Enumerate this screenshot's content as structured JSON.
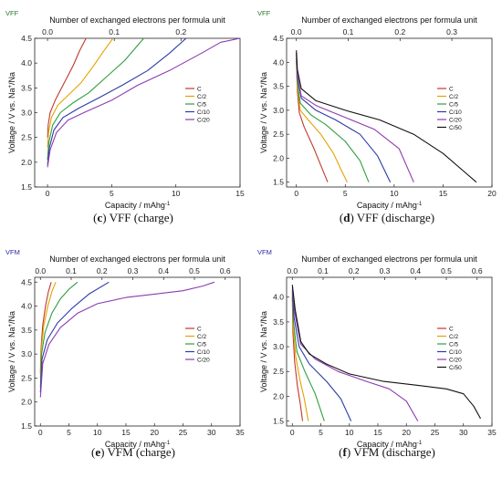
{
  "captions": [
    {
      "letter": "c",
      "text": "VFF (charge)"
    },
    {
      "letter": "d",
      "text": "VFF (discharge)"
    },
    {
      "letter": "e",
      "text": "VFM (charge)"
    },
    {
      "letter": "f",
      "text": "VFM (discharge)"
    }
  ],
  "tag_color": "#2a7a2a",
  "tag_color_vfm": "#2a2aa8",
  "chart_data": [
    {
      "type": "line",
      "tag": "VFF",
      "title": "",
      "xlabel": "Capacity / mAhg",
      "xlabel_sup": "-1",
      "ylabel": "Voltage / V vs. Na",
      "ylabel_sup": "+",
      "ylabel_suffix": "/Na",
      "top_label": "Number of exchanged electrons per formula unit",
      "xlim": [
        -1,
        15
      ],
      "ylim": [
        1.5,
        4.5
      ],
      "xticks": [
        "0",
        "5",
        "10",
        "15"
      ],
      "yticks": [
        "1.5",
        "2.0",
        "2.5",
        "3.0",
        "3.5",
        "4.0",
        "4.5"
      ],
      "top_ticks": [
        "0.0",
        "0.1",
        "0.2"
      ],
      "top_ticks_x": [
        0,
        5.2,
        10.4
      ],
      "legend": "right",
      "series": [
        {
          "name": "C",
          "color": "#c0392b",
          "points": [
            [
              0,
              2.5
            ],
            [
              0.05,
              2.75
            ],
            [
              0.2,
              3.0
            ],
            [
              0.6,
              3.25
            ],
            [
              1.2,
              3.55
            ],
            [
              2.0,
              3.95
            ],
            [
              2.5,
              4.25
            ],
            [
              3.0,
              4.5
            ]
          ]
        },
        {
          "name": "C/2",
          "color": "#e6a100",
          "points": [
            [
              0,
              2.3
            ],
            [
              0.08,
              2.6
            ],
            [
              0.3,
              2.9
            ],
            [
              0.8,
              3.15
            ],
            [
              1.6,
              3.35
            ],
            [
              2.6,
              3.6
            ],
            [
              3.6,
              3.95
            ],
            [
              4.4,
              4.25
            ],
            [
              5.1,
              4.5
            ]
          ]
        },
        {
          "name": "C/5",
          "color": "#2e9e3e",
          "points": [
            [
              0,
              2.05
            ],
            [
              0.1,
              2.4
            ],
            [
              0.4,
              2.75
            ],
            [
              1.0,
              3.0
            ],
            [
              2.0,
              3.2
            ],
            [
              3.2,
              3.4
            ],
            [
              4.5,
              3.7
            ],
            [
              6.0,
              4.05
            ],
            [
              7.5,
              4.5
            ]
          ]
        },
        {
          "name": "C/10",
          "color": "#2b3ba8",
          "points": [
            [
              0,
              1.95
            ],
            [
              0.15,
              2.3
            ],
            [
              0.5,
              2.65
            ],
            [
              1.2,
              2.9
            ],
            [
              2.5,
              3.1
            ],
            [
              4.0,
              3.3
            ],
            [
              5.8,
              3.55
            ],
            [
              7.8,
              3.85
            ],
            [
              9.5,
              4.2
            ],
            [
              10.8,
              4.5
            ]
          ]
        },
        {
          "name": "C/20",
          "color": "#8e3bb0",
          "points": [
            [
              0,
              1.9
            ],
            [
              0.2,
              2.25
            ],
            [
              0.7,
              2.6
            ],
            [
              1.6,
              2.85
            ],
            [
              3.0,
              3.02
            ],
            [
              5.0,
              3.25
            ],
            [
              7.0,
              3.55
            ],
            [
              9.5,
              3.85
            ],
            [
              12.0,
              4.2
            ],
            [
              13.5,
              4.42
            ],
            [
              15,
              4.5
            ]
          ]
        }
      ]
    },
    {
      "type": "line",
      "tag": "VFF",
      "title": "",
      "xlabel": "Capacity / mAhg",
      "xlabel_sup": "-1",
      "ylabel": "Voltage / V vs. Na",
      "ylabel_sup": "+",
      "ylabel_suffix": "/Na",
      "top_label": "Number of exchanged electrons per formula unit",
      "xlim": [
        -1,
        20
      ],
      "ylim": [
        1.4,
        4.5
      ],
      "xticks": [
        "0",
        "5",
        "10",
        "15",
        "20"
      ],
      "yticks": [
        "1.5",
        "2.0",
        "2.5",
        "3.0",
        "3.5",
        "4.0",
        "4.5"
      ],
      "top_ticks": [
        "0.0",
        "0.1",
        "0.2",
        "0.3"
      ],
      "top_ticks_x": [
        0,
        5.3,
        10.6,
        15.9
      ],
      "legend": "right",
      "series": [
        {
          "name": "C",
          "color": "#c0392b",
          "points": [
            [
              0,
              4.05
            ],
            [
              0.1,
              3.4
            ],
            [
              0.3,
              2.95
            ],
            [
              0.8,
              2.65
            ],
            [
              1.8,
              2.2
            ],
            [
              2.5,
              1.85
            ],
            [
              3.2,
              1.5
            ]
          ]
        },
        {
          "name": "C/2",
          "color": "#e6a100",
          "points": [
            [
              0,
              4.1
            ],
            [
              0.1,
              3.5
            ],
            [
              0.4,
              3.0
            ],
            [
              1.2,
              2.8
            ],
            [
              2.5,
              2.5
            ],
            [
              3.8,
              2.1
            ],
            [
              4.6,
              1.75
            ],
            [
              5.2,
              1.5
            ]
          ]
        },
        {
          "name": "C/5",
          "color": "#2e9e3e",
          "points": [
            [
              0,
              4.15
            ],
            [
              0.1,
              3.6
            ],
            [
              0.4,
              3.15
            ],
            [
              1.5,
              2.9
            ],
            [
              3.0,
              2.7
            ],
            [
              5.0,
              2.35
            ],
            [
              6.5,
              1.95
            ],
            [
              7.4,
              1.5
            ]
          ]
        },
        {
          "name": "C/10",
          "color": "#2b3ba8",
          "points": [
            [
              0,
              4.2
            ],
            [
              0.1,
              3.7
            ],
            [
              0.5,
              3.25
            ],
            [
              2.0,
              3.0
            ],
            [
              4.0,
              2.8
            ],
            [
              6.5,
              2.5
            ],
            [
              8.3,
              2.05
            ],
            [
              9.6,
              1.5
            ]
          ]
        },
        {
          "name": "C/20",
          "color": "#8e3bb0",
          "points": [
            [
              0,
              4.2
            ],
            [
              0.1,
              3.75
            ],
            [
              0.5,
              3.3
            ],
            [
              2.0,
              3.1
            ],
            [
              5.0,
              2.85
            ],
            [
              8.0,
              2.6
            ],
            [
              10.5,
              2.2
            ],
            [
              12.0,
              1.5
            ]
          ]
        },
        {
          "name": "C/50",
          "color": "#111111",
          "points": [
            [
              0,
              4.25
            ],
            [
              0.1,
              3.85
            ],
            [
              0.5,
              3.45
            ],
            [
              2.0,
              3.2
            ],
            [
              5.0,
              3.0
            ],
            [
              8.5,
              2.8
            ],
            [
              12.0,
              2.5
            ],
            [
              15.0,
              2.1
            ],
            [
              18.4,
              1.5
            ]
          ]
        }
      ]
    },
    {
      "type": "line",
      "tag": "VFM",
      "title": "",
      "xlabel": "Capacity / mAhg",
      "xlabel_sup": "-1",
      "ylabel": "Voltage / V vs. Na",
      "ylabel_sup": "+",
      "ylabel_suffix": "/Na",
      "top_label": "Number of exchanged electrons per formula unit",
      "xlim": [
        -1,
        35
      ],
      "ylim": [
        1.5,
        4.6
      ],
      "xticks": [
        "0",
        "5",
        "10",
        "15",
        "20",
        "25",
        "30",
        "35"
      ],
      "yticks": [
        "1.5",
        "2.0",
        "2.5",
        "3.0",
        "3.5",
        "4.0",
        "4.5"
      ],
      "top_ticks": [
        "0.0",
        "0.1",
        "0.2",
        "0.3",
        "0.4",
        "0.5",
        "0.6"
      ],
      "top_ticks_x": [
        0,
        5.4,
        10.8,
        16.2,
        21.6,
        27.0,
        32.4
      ],
      "legend": "right",
      "series": [
        {
          "name": "C",
          "color": "#c0392b",
          "points": [
            [
              0,
              2.6
            ],
            [
              0.1,
              3.1
            ],
            [
              0.4,
              3.6
            ],
            [
              0.9,
              4.0
            ],
            [
              1.4,
              4.3
            ],
            [
              1.9,
              4.5
            ]
          ]
        },
        {
          "name": "C/2",
          "color": "#e6a100",
          "points": [
            [
              0,
              2.5
            ],
            [
              0.15,
              3.1
            ],
            [
              0.6,
              3.6
            ],
            [
              1.3,
              4.0
            ],
            [
              2.0,
              4.3
            ],
            [
              2.7,
              4.5
            ]
          ]
        },
        {
          "name": "C/5",
          "color": "#2e9e3e",
          "points": [
            [
              0,
              2.3
            ],
            [
              0.2,
              3.0
            ],
            [
              0.8,
              3.45
            ],
            [
              2.0,
              3.85
            ],
            [
              3.5,
              4.15
            ],
            [
              5.0,
              4.35
            ],
            [
              6.5,
              4.5
            ]
          ]
        },
        {
          "name": "C/10",
          "color": "#2b3ba8",
          "points": [
            [
              0,
              2.2
            ],
            [
              0.3,
              2.9
            ],
            [
              1.2,
              3.3
            ],
            [
              3.0,
              3.65
            ],
            [
              5.5,
              3.95
            ],
            [
              8.5,
              4.25
            ],
            [
              12.0,
              4.5
            ]
          ]
        },
        {
          "name": "C/20",
          "color": "#8e3bb0",
          "points": [
            [
              0,
              2.1
            ],
            [
              0.4,
              2.8
            ],
            [
              1.5,
              3.2
            ],
            [
              3.5,
              3.55
            ],
            [
              6.5,
              3.85
            ],
            [
              10.0,
              4.05
            ],
            [
              15.0,
              4.18
            ],
            [
              20.0,
              4.25
            ],
            [
              25.0,
              4.32
            ],
            [
              28.5,
              4.42
            ],
            [
              30.5,
              4.5
            ]
          ]
        }
      ]
    },
    {
      "type": "line",
      "tag": "VFM",
      "title": "",
      "xlabel": "Capacity / mAhg",
      "xlabel_sup": "-1",
      "ylabel": "Voltage / V vs. Na",
      "ylabel_sup": "+",
      "ylabel_suffix": "/Na",
      "top_label": "Number of exchanged electrons per formula unit",
      "xlim": [
        -1,
        35
      ],
      "ylim": [
        1.4,
        4.4
      ],
      "xticks": [
        "0",
        "5",
        "10",
        "15",
        "20",
        "25",
        "30",
        "35"
      ],
      "yticks": [
        "1.5",
        "2.0",
        "2.5",
        "3.0",
        "3.5",
        "4.0"
      ],
      "top_ticks": [
        "0.0",
        "0.1",
        "0.2",
        "0.3",
        "0.4",
        "0.5",
        "0.6"
      ],
      "top_ticks_x": [
        0,
        5.4,
        10.8,
        16.2,
        21.6,
        27.0,
        32.4
      ],
      "legend": "right",
      "series": [
        {
          "name": "C",
          "color": "#c0392b",
          "points": [
            [
              0,
              4.0
            ],
            [
              0.1,
              3.3
            ],
            [
              0.4,
              2.7
            ],
            [
              0.9,
              2.2
            ],
            [
              1.4,
              1.85
            ],
            [
              1.8,
              1.5
            ]
          ]
        },
        {
          "name": "C/2",
          "color": "#e6a100",
          "points": [
            [
              0,
              4.05
            ],
            [
              0.15,
              3.4
            ],
            [
              0.6,
              2.8
            ],
            [
              1.3,
              2.35
            ],
            [
              2.1,
              1.95
            ],
            [
              2.8,
              1.5
            ]
          ]
        },
        {
          "name": "C/5",
          "color": "#2e9e3e",
          "points": [
            [
              0,
              4.1
            ],
            [
              0.2,
              3.5
            ],
            [
              0.8,
              2.9
            ],
            [
              2.2,
              2.5
            ],
            [
              4.0,
              2.05
            ],
            [
              5.6,
              1.5
            ]
          ]
        },
        {
          "name": "C/10",
          "color": "#2b3ba8",
          "points": [
            [
              0,
              4.15
            ],
            [
              0.3,
              3.6
            ],
            [
              1.2,
              3.0
            ],
            [
              3.0,
              2.65
            ],
            [
              6.0,
              2.3
            ],
            [
              8.5,
              1.95
            ],
            [
              10.3,
              1.5
            ]
          ]
        },
        {
          "name": "C/20",
          "color": "#8e3bb0",
          "points": [
            [
              0,
              4.2
            ],
            [
              0.4,
              3.7
            ],
            [
              1.5,
              3.05
            ],
            [
              4.0,
              2.75
            ],
            [
              8.0,
              2.5
            ],
            [
              13.0,
              2.3
            ],
            [
              17.0,
              2.15
            ],
            [
              20.0,
              1.9
            ],
            [
              22.0,
              1.5
            ]
          ]
        },
        {
          "name": "C/50",
          "color": "#111111",
          "points": [
            [
              0,
              4.25
            ],
            [
              0.5,
              3.75
            ],
            [
              1.5,
              3.1
            ],
            [
              3.0,
              2.85
            ],
            [
              6.0,
              2.65
            ],
            [
              10.0,
              2.45
            ],
            [
              16.0,
              2.3
            ],
            [
              22.0,
              2.22
            ],
            [
              27.0,
              2.15
            ],
            [
              30.0,
              2.05
            ],
            [
              31.8,
              1.8
            ],
            [
              33.0,
              1.55
            ]
          ]
        }
      ]
    }
  ]
}
